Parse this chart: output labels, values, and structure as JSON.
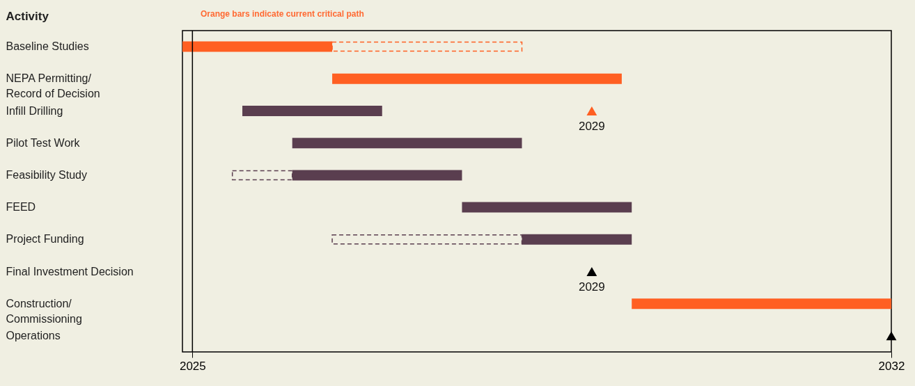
{
  "chart_data": {
    "type": "bar",
    "orientation": "horizontal",
    "ylabel": "Activity",
    "annotations": [
      "Orange bars indicate current critical path",
      {
        "text": "2029",
        "x": 2029,
        "y": "Infill Drilling"
      },
      {
        "text": "2029",
        "x": 2029,
        "y": "Final Investment Decision"
      }
    ],
    "categories": [
      "Baseline Studies",
      "NEPA Permitting/Record of Decision",
      "Infill Drilling",
      "Pilot Test Work",
      "Feasibility Study",
      "FEED",
      "Project Funding",
      "Final Investment Decision",
      "Construction/Commissioning",
      "Operations"
    ],
    "series": [
      {
        "color": "#ff5f22",
        "base": [
          2024.9,
          2026.4,
          null,
          null,
          null,
          null,
          null,
          null,
          2029.4,
          null
        ],
        "values": [
          1.5,
          2.9,
          null,
          null,
          null,
          null,
          null,
          null,
          2.6,
          null
        ]
      },
      {
        "color": "#5a3e4f",
        "base": [
          null,
          null,
          2025.5,
          2026.0,
          2026.0,
          2027.7,
          2028.3,
          null,
          null,
          null
        ],
        "values": [
          null,
          null,
          1.4,
          2.3,
          1.7,
          1.7,
          1.1,
          null,
          null,
          null
        ]
      },
      {
        "line_style": "dashed",
        "colors": [
          "#ff5f22",
          null,
          null,
          null,
          "#5a3e4f",
          null,
          "#5a3e4f",
          null,
          null,
          null
        ],
        "base": [
          2026.4,
          null,
          null,
          null,
          2025.4,
          null,
          2026.4,
          null,
          null,
          null
        ],
        "values": [
          1.9,
          null,
          null,
          null,
          0.6,
          null,
          1.9,
          null,
          null,
          null
        ]
      },
      {
        "type": "scatter",
        "marker": "triangle",
        "colors": [
          null,
          null,
          "#ff5f22",
          null,
          null,
          null,
          null,
          "#000000",
          null,
          "#000000"
        ],
        "values": [
          null,
          null,
          2029,
          null,
          null,
          null,
          null,
          2029,
          null,
          2032
        ]
      }
    ],
    "xlim": [
      2024.9,
      2032
    ],
    "xticks": [
      2025,
      2032
    ],
    "ref_lines": [
      {
        "axis": "x",
        "value": 2025,
        "color": "#000000"
      }
    ],
    "grid": false
  }
}
